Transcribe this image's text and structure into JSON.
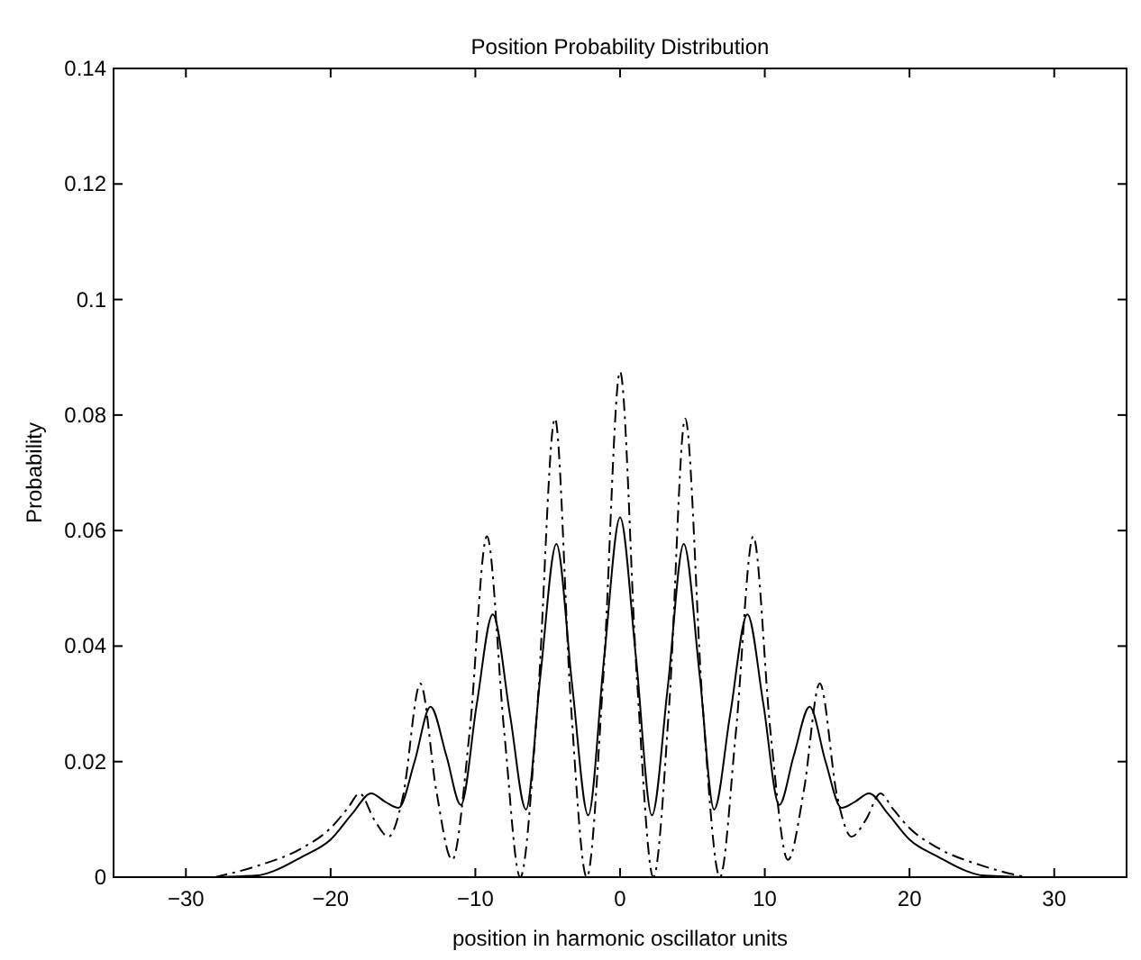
{
  "chart_data": {
    "type": "line",
    "title": "Position Probability Distribution",
    "xlabel": "position in harmonic oscillator units",
    "ylabel": "Probability",
    "xlim": [
      -35,
      35
    ],
    "ylim": [
      0,
      0.14
    ],
    "xticks": [
      {
        "value": -30,
        "label": "−30"
      },
      {
        "value": -20,
        "label": "−20"
      },
      {
        "value": -10,
        "label": "−10"
      },
      0,
      10,
      20,
      30
    ],
    "yticks": [
      0,
      0.02,
      0.04,
      0.06,
      0.08,
      0.1,
      0.12,
      0.14
    ],
    "grid": false,
    "marker": "none",
    "series": [
      {
        "color": "#000000",
        "line_style": "solid",
        "x": [
          -28,
          -25,
          -24,
          -22,
          -20,
          -18.5,
          -17.2,
          -16.2,
          -15.3,
          -14.2,
          -13.1,
          -12,
          -11,
          -9.9,
          -8.8,
          -7.6,
          -6.5,
          -5.5,
          -4.4,
          -3.3,
          -2.2,
          -1.1,
          0,
          1.1,
          2.2,
          3.3,
          4.4,
          5.5,
          6.5,
          7.6,
          8.8,
          9.9,
          11,
          12,
          13.1,
          14.2,
          15.3,
          16.2,
          17.2,
          18.5,
          20,
          22,
          24,
          25,
          28
        ],
        "values": [
          0,
          0.0003,
          0.001,
          0.0035,
          0.0065,
          0.011,
          0.0145,
          0.013,
          0.012,
          0.02,
          0.0295,
          0.021,
          0.0125,
          0.03,
          0.0455,
          0.028,
          0.0117,
          0.035,
          0.0577,
          0.033,
          0.0107,
          0.038,
          0.0623,
          0.038,
          0.0107,
          0.033,
          0.0577,
          0.035,
          0.0117,
          0.028,
          0.0455,
          0.03,
          0.0125,
          0.021,
          0.0295,
          0.02,
          0.012,
          0.013,
          0.0145,
          0.011,
          0.0065,
          0.0035,
          0.001,
          0.0003,
          0
        ]
      },
      {
        "color": "#000000",
        "line_style": "dashed",
        "x": [
          -28,
          -25,
          -22,
          -20,
          -18.8,
          -18,
          -17,
          -16,
          -15,
          -13.8,
          -12.7,
          -11.6,
          -10.4,
          -9.2,
          -8,
          -6.9,
          -5.7,
          -4.5,
          -3.4,
          -2.3,
          -1.15,
          0,
          1.15,
          2.3,
          3.4,
          4.5,
          5.7,
          6.9,
          8,
          9.2,
          10.4,
          11.6,
          12.7,
          13.8,
          15,
          16,
          17,
          18,
          18.8,
          20,
          22,
          25,
          28
        ],
        "values": [
          0,
          0.002,
          0.005,
          0.0085,
          0.012,
          0.0145,
          0.01,
          0.007,
          0.014,
          0.0335,
          0.015,
          0.003,
          0.025,
          0.059,
          0.025,
          0,
          0.03,
          0.0794,
          0.03,
          0,
          0.035,
          0.0875,
          0.035,
          0,
          0.03,
          0.0794,
          0.03,
          0,
          0.025,
          0.059,
          0.025,
          0.003,
          0.015,
          0.0335,
          0.014,
          0.007,
          0.01,
          0.0145,
          0.012,
          0.0085,
          0.005,
          0.002,
          0
        ]
      }
    ]
  }
}
